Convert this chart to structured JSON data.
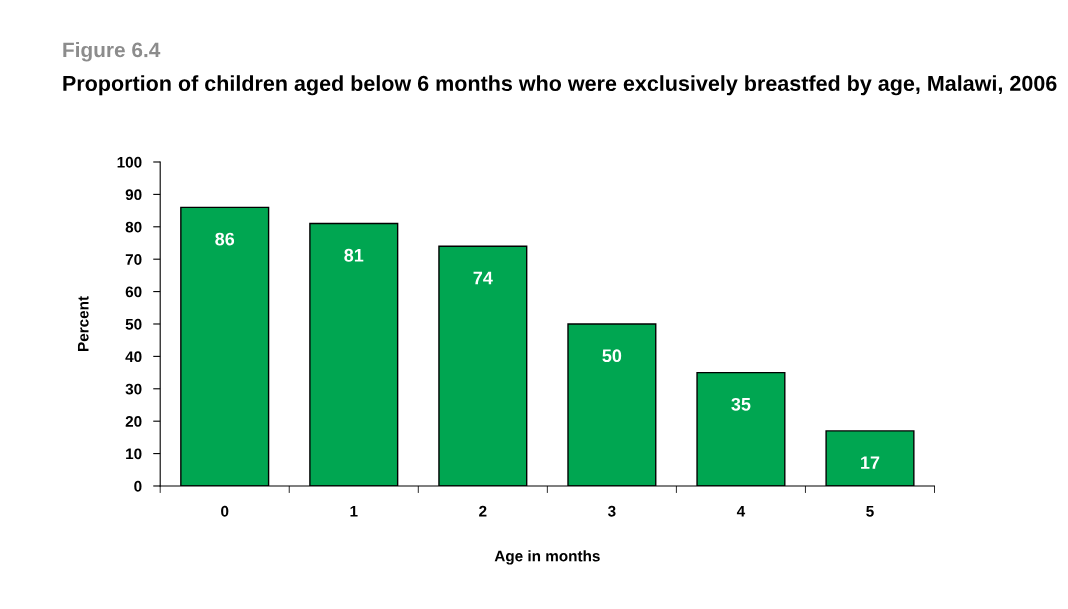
{
  "chart_data": {
    "type": "bar",
    "title": "Figure 6.4",
    "subtitle": "Proportion of children aged below 6 months who were exclusively breastfed by age, Malawi, 2006",
    "xlabel": "Age in months",
    "ylabel": "Percent",
    "categories": [
      "0",
      "1",
      "2",
      "3",
      "4",
      "5"
    ],
    "values": [
      86,
      81,
      74,
      50,
      35,
      17
    ],
    "color": "#00a651",
    "ylim": [
      0,
      100
    ],
    "yticks": [
      0,
      10,
      20,
      30,
      40,
      50,
      60,
      70,
      80,
      90,
      100
    ],
    "data_labels": true,
    "grid": false,
    "legend": false
  }
}
